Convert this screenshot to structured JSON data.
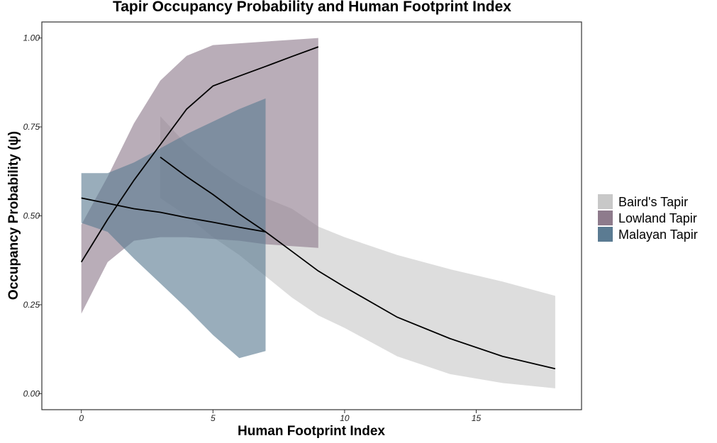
{
  "chart_data": {
    "type": "line",
    "title": "Tapir Occupancy Probability and Human Footprint Index",
    "xlabel": "Human Footprint Index",
    "ylabel": "Occupancy Probability (ψ)",
    "xlim": [
      -1.5,
      19
    ],
    "ylim": [
      -0.045,
      1.045
    ],
    "x_ticks": [
      0,
      5,
      10,
      15
    ],
    "y_ticks": [
      0.0,
      0.25,
      0.5,
      0.75,
      1.0
    ],
    "x_tick_labels": [
      "0",
      "5",
      "10",
      "15"
    ],
    "y_tick_labels": [
      "0.00",
      "0.25",
      "0.50",
      "0.75",
      "1.00"
    ],
    "grid": false,
    "legend_position": "right",
    "series": [
      {
        "name": "Baird's Tapir",
        "color": "#c8c8c8",
        "x": [
          3,
          4,
          5,
          6,
          7,
          8,
          9,
          10,
          12,
          14,
          16,
          18
        ],
        "y": [
          0.665,
          0.61,
          0.56,
          0.505,
          0.455,
          0.4,
          0.345,
          0.3,
          0.215,
          0.155,
          0.105,
          0.07
        ],
        "lower": [
          0.55,
          0.5,
          0.44,
          0.39,
          0.33,
          0.27,
          0.22,
          0.185,
          0.105,
          0.055,
          0.03,
          0.015
        ],
        "upper": [
          0.78,
          0.7,
          0.64,
          0.59,
          0.55,
          0.52,
          0.47,
          0.44,
          0.39,
          0.35,
          0.315,
          0.275
        ]
      },
      {
        "name": "Lowland Tapir",
        "color": "#8e7b8c",
        "x": [
          0,
          1,
          2,
          3,
          4,
          5,
          6,
          7,
          8,
          9
        ],
        "y": [
          0.37,
          0.49,
          0.6,
          0.7,
          0.8,
          0.865,
          0.893,
          0.92,
          0.948,
          0.975
        ],
        "lower": [
          0.225,
          0.37,
          0.43,
          0.44,
          0.44,
          0.435,
          0.43,
          0.42,
          0.415,
          0.41
        ],
        "upper": [
          0.475,
          0.61,
          0.76,
          0.88,
          0.95,
          0.98,
          0.985,
          0.99,
          0.995,
          1.0
        ]
      },
      {
        "name": "Malayan Tapir",
        "color": "#5b7b92",
        "x": [
          0,
          1,
          2,
          3,
          4,
          5,
          6,
          7
        ],
        "y": [
          0.55,
          0.535,
          0.52,
          0.51,
          0.495,
          0.482,
          0.468,
          0.455
        ],
        "lower": [
          0.48,
          0.455,
          0.38,
          0.31,
          0.24,
          0.165,
          0.1,
          0.12
        ],
        "upper": [
          0.62,
          0.62,
          0.65,
          0.69,
          0.73,
          0.765,
          0.8,
          0.83
        ]
      }
    ]
  }
}
